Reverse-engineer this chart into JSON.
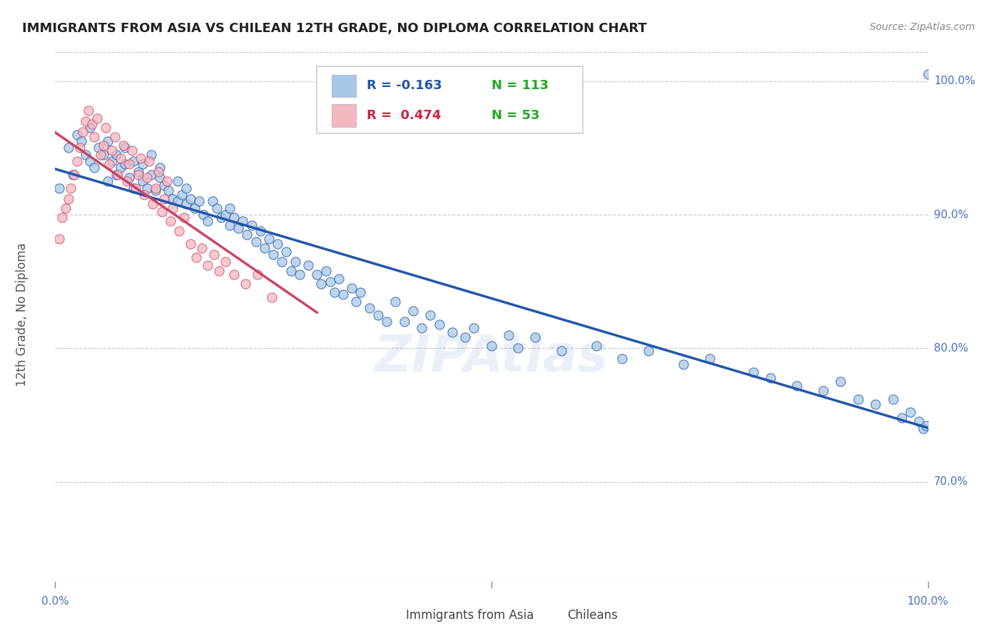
{
  "title": "IMMIGRANTS FROM ASIA VS CHILEAN 12TH GRADE, NO DIPLOMA CORRELATION CHART",
  "source": "Source: ZipAtlas.com",
  "ylabel": "12th Grade, No Diploma",
  "x_min": 0.0,
  "x_max": 1.0,
  "y_min": 0.625,
  "y_max": 1.025,
  "x_ticks": [
    0.0,
    1.0
  ],
  "x_tick_labels": [
    "0.0%",
    "100.0%"
  ],
  "y_ticks": [
    0.7,
    0.8,
    0.9,
    1.0
  ],
  "y_tick_labels": [
    "70.0%",
    "80.0%",
    "90.0%",
    "100.0%"
  ],
  "legend_r_blue": "R = -0.163",
  "legend_n_blue": "N = 113",
  "legend_r_pink": "R =  0.474",
  "legend_n_pink": "N = 53",
  "blue_color": "#a8c8e8",
  "pink_color": "#f4b8c0",
  "blue_line_color": "#2255aa",
  "pink_line_color": "#cc4466",
  "tick_label_color": "#4472c4",
  "watermark": "ZIPAtlas",
  "blue_scatter_x": [
    0.005,
    0.015,
    0.02,
    0.025,
    0.03,
    0.035,
    0.04,
    0.04,
    0.045,
    0.05,
    0.055,
    0.06,
    0.06,
    0.065,
    0.07,
    0.07,
    0.075,
    0.08,
    0.08,
    0.085,
    0.09,
    0.09,
    0.095,
    0.1,
    0.1,
    0.105,
    0.11,
    0.11,
    0.115,
    0.12,
    0.12,
    0.125,
    0.13,
    0.135,
    0.14,
    0.14,
    0.145,
    0.15,
    0.15,
    0.155,
    0.16,
    0.165,
    0.17,
    0.175,
    0.18,
    0.185,
    0.19,
    0.195,
    0.2,
    0.2,
    0.205,
    0.21,
    0.215,
    0.22,
    0.225,
    0.23,
    0.235,
    0.24,
    0.245,
    0.25,
    0.255,
    0.26,
    0.265,
    0.27,
    0.275,
    0.28,
    0.29,
    0.3,
    0.305,
    0.31,
    0.315,
    0.32,
    0.325,
    0.33,
    0.34,
    0.345,
    0.35,
    0.36,
    0.37,
    0.38,
    0.39,
    0.4,
    0.41,
    0.42,
    0.43,
    0.44,
    0.455,
    0.47,
    0.48,
    0.5,
    0.52,
    0.53,
    0.55,
    0.58,
    0.62,
    0.65,
    0.68,
    0.72,
    0.75,
    0.8,
    0.82,
    0.85,
    0.88,
    0.9,
    0.92,
    0.94,
    0.96,
    0.97,
    0.98,
    0.99,
    0.995,
    0.998,
    1.0
  ],
  "blue_scatter_y": [
    0.92,
    0.95,
    0.93,
    0.96,
    0.955,
    0.945,
    0.965,
    0.94,
    0.935,
    0.95,
    0.945,
    0.955,
    0.925,
    0.94,
    0.93,
    0.945,
    0.935,
    0.938,
    0.95,
    0.928,
    0.94,
    0.92,
    0.932,
    0.925,
    0.938,
    0.92,
    0.93,
    0.945,
    0.918,
    0.935,
    0.928,
    0.922,
    0.918,
    0.912,
    0.925,
    0.91,
    0.915,
    0.92,
    0.908,
    0.912,
    0.905,
    0.91,
    0.9,
    0.895,
    0.91,
    0.905,
    0.898,
    0.9,
    0.892,
    0.905,
    0.898,
    0.89,
    0.895,
    0.885,
    0.892,
    0.88,
    0.888,
    0.875,
    0.882,
    0.87,
    0.878,
    0.865,
    0.872,
    0.858,
    0.865,
    0.855,
    0.862,
    0.855,
    0.848,
    0.858,
    0.85,
    0.842,
    0.852,
    0.84,
    0.845,
    0.835,
    0.842,
    0.83,
    0.825,
    0.82,
    0.835,
    0.82,
    0.828,
    0.815,
    0.825,
    0.818,
    0.812,
    0.808,
    0.815,
    0.802,
    0.81,
    0.8,
    0.808,
    0.798,
    0.802,
    0.792,
    0.798,
    0.788,
    0.792,
    0.782,
    0.778,
    0.772,
    0.768,
    0.775,
    0.762,
    0.758,
    0.762,
    0.748,
    0.752,
    0.745,
    0.74,
    0.742,
    1.005
  ],
  "pink_scatter_x": [
    0.005,
    0.008,
    0.012,
    0.015,
    0.018,
    0.022,
    0.025,
    0.028,
    0.032,
    0.035,
    0.038,
    0.042,
    0.045,
    0.048,
    0.052,
    0.055,
    0.058,
    0.062,
    0.065,
    0.068,
    0.072,
    0.075,
    0.078,
    0.082,
    0.085,
    0.088,
    0.092,
    0.095,
    0.098,
    0.102,
    0.105,
    0.108,
    0.112,
    0.115,
    0.118,
    0.122,
    0.125,
    0.128,
    0.132,
    0.135,
    0.142,
    0.148,
    0.155,
    0.162,
    0.168,
    0.175,
    0.182,
    0.188,
    0.195,
    0.205,
    0.218,
    0.232,
    0.248
  ],
  "pink_scatter_y": [
    0.882,
    0.898,
    0.905,
    0.912,
    0.92,
    0.93,
    0.94,
    0.95,
    0.962,
    0.97,
    0.978,
    0.968,
    0.958,
    0.972,
    0.945,
    0.952,
    0.965,
    0.938,
    0.948,
    0.958,
    0.93,
    0.942,
    0.952,
    0.925,
    0.938,
    0.948,
    0.92,
    0.93,
    0.942,
    0.915,
    0.928,
    0.94,
    0.908,
    0.92,
    0.932,
    0.902,
    0.912,
    0.925,
    0.895,
    0.905,
    0.888,
    0.898,
    0.878,
    0.868,
    0.875,
    0.862,
    0.87,
    0.858,
    0.865,
    0.855,
    0.848,
    0.855,
    0.838
  ]
}
